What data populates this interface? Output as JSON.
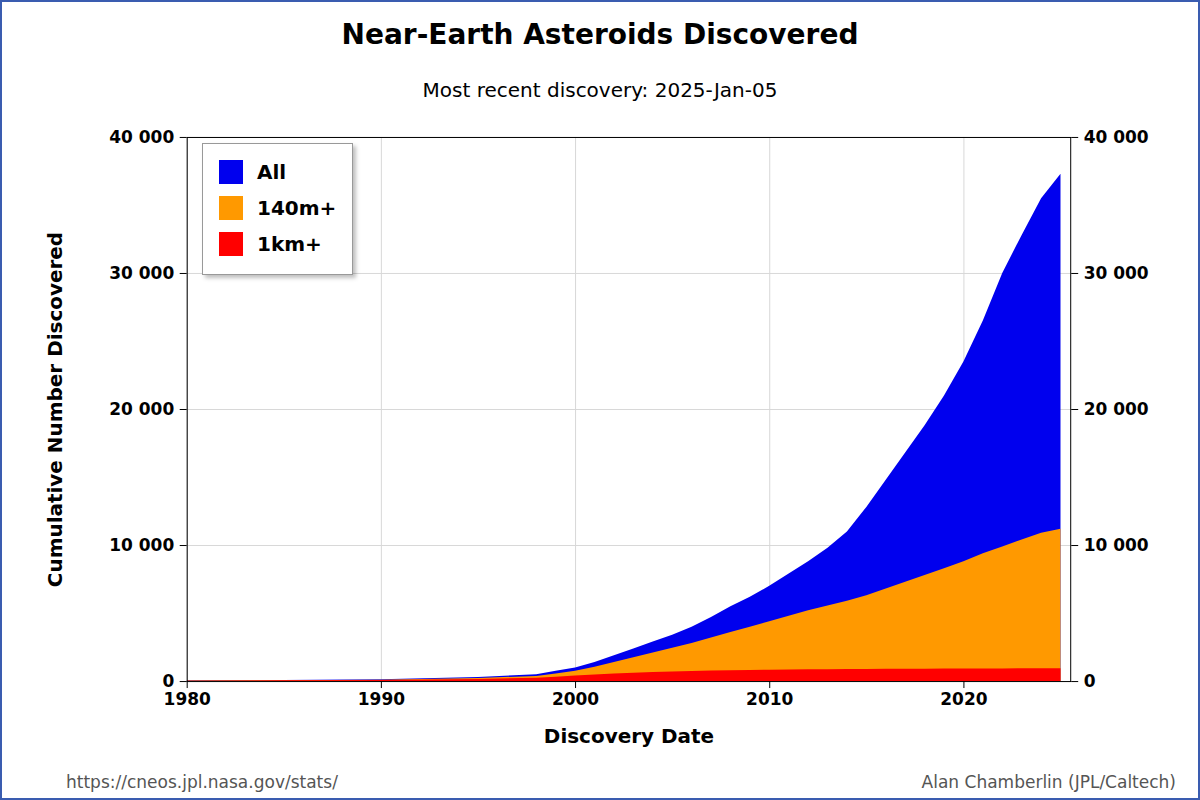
{
  "chart_data": {
    "type": "area",
    "title": "Near-Earth Asteroids Discovered",
    "subtitle": "Most recent discovery: 2025-Jan-05",
    "x_label": "Discovery Date",
    "y_label": "Cumulative Number Discovered",
    "annotations": [
      "https://cneos.jpl.nasa.gov/stats/",
      "Alan Chamberlin (JPL/Caltech)"
    ],
    "x": [
      1980,
      1985,
      1990,
      1995,
      1998,
      1999,
      2000,
      2001,
      2002,
      2003,
      2004,
      2005,
      2006,
      2007,
      2008,
      2009,
      2010,
      2011,
      2012,
      2013,
      2014,
      2015,
      2016,
      2017,
      2018,
      2019,
      2020,
      2021,
      2022,
      2023,
      2024,
      2025
    ],
    "series": [
      {
        "name": "All",
        "color": "#0000ee",
        "values": [
          50,
          80,
          130,
          300,
          500,
          750,
          1000,
          1400,
          1900,
          2400,
          2900,
          3400,
          4000,
          4700,
          5500,
          6200,
          7000,
          7900,
          8800,
          9800,
          11000,
          12800,
          14800,
          16800,
          18800,
          21000,
          23500,
          26500,
          30000,
          32800,
          35500,
          37300
        ]
      },
      {
        "name": "140m+",
        "color": "#ff9900",
        "values": [
          40,
          60,
          100,
          220,
          380,
          550,
          750,
          1050,
          1400,
          1750,
          2100,
          2450,
          2800,
          3200,
          3600,
          4000,
          4400,
          4800,
          5200,
          5550,
          5900,
          6300,
          6800,
          7300,
          7800,
          8300,
          8800,
          9400,
          9900,
          10400,
          10900,
          11200
        ]
      },
      {
        "name": "1km+",
        "color": "#ff0000",
        "values": [
          30,
          50,
          80,
          150,
          250,
          320,
          400,
          480,
          550,
          610,
          660,
          700,
          740,
          770,
          790,
          810,
          830,
          845,
          860,
          870,
          880,
          890,
          900,
          905,
          910,
          915,
          920,
          925,
          930,
          935,
          940,
          945
        ]
      }
    ],
    "xlim": [
      1980,
      2025.5
    ],
    "xticks": [
      1980,
      1990,
      2000,
      2010,
      2020
    ],
    "ylim": [
      0,
      40000
    ],
    "yticks": [
      0,
      {
        "value": 10000,
        "label": "10 000"
      },
      {
        "value": 20000,
        "label": "20 000"
      },
      {
        "value": 30000,
        "label": "30 000"
      },
      {
        "value": 40000,
        "label": "40 000"
      }
    ],
    "grid": true,
    "legend": "top-left",
    "stacked": false
  }
}
